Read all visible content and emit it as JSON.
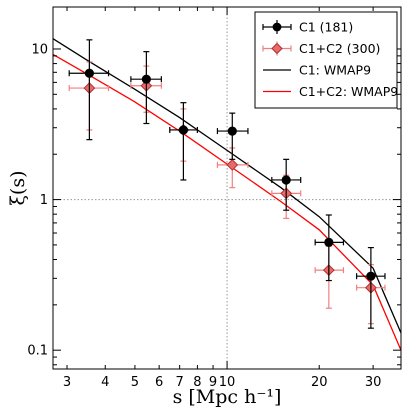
{
  "chart_data": {
    "type": "scatter",
    "title": "",
    "xlabel": "s [Mpc h⁻¹]",
    "ylabel": "ξ(s)",
    "xscale": "log",
    "yscale": "log",
    "xlim": [
      2.7,
      37
    ],
    "ylim": [
      0.075,
      19
    ],
    "grid": "dotted lines at x=10 and y=1",
    "legend_position": "top-right",
    "x_tick_labels": [
      "3",
      "4",
      "5",
      "6",
      "7",
      "8",
      "9",
      "10",
      "20",
      "30"
    ],
    "x_ticks": [
      3,
      4,
      5,
      6,
      7,
      8,
      9,
      10,
      20,
      30
    ],
    "y_tick_labels": [
      "0.1",
      "1",
      "10"
    ],
    "y_ticks": [
      0.1,
      1,
      10
    ],
    "series": [
      {
        "name": "C1 (181)",
        "kind": "points",
        "color": "#000000",
        "marker": "circle",
        "points": [
          {
            "x": 3.55,
            "y": 6.9,
            "x_lo": 3.05,
            "x_hi": 4.1,
            "y_lo": 2.5,
            "y_hi": 11.5
          },
          {
            "x": 5.45,
            "y": 6.3,
            "x_lo": 4.85,
            "x_hi": 6.1,
            "y_lo": 3.2,
            "y_hi": 9.6
          },
          {
            "x": 7.2,
            "y": 2.9,
            "x_lo": 6.5,
            "x_hi": 8.0,
            "y_lo": 1.35,
            "y_hi": 4.4
          },
          {
            "x": 10.4,
            "y": 2.85,
            "x_lo": 9.3,
            "x_hi": 11.7,
            "y_lo": 1.85,
            "y_hi": 3.75
          },
          {
            "x": 15.6,
            "y": 1.35,
            "x_lo": 14.0,
            "x_hi": 17.4,
            "y_lo": 0.85,
            "y_hi": 1.85
          },
          {
            "x": 21.5,
            "y": 0.52,
            "x_lo": 19.4,
            "x_hi": 24.0,
            "y_lo": 0.29,
            "y_hi": 0.79
          },
          {
            "x": 29.5,
            "y": 0.31,
            "x_lo": 26.5,
            "x_hi": 32.8,
            "y_lo": 0.14,
            "y_hi": 0.48
          }
        ]
      },
      {
        "name": "C1+C2 (300)",
        "kind": "points",
        "color": "#e05050",
        "marker": "diamond",
        "points": [
          {
            "x": 3.55,
            "y": 5.5,
            "x_lo": 3.05,
            "x_hi": 4.1,
            "y_lo": 2.9,
            "y_hi": 8.2
          },
          {
            "x": 5.45,
            "y": 5.7,
            "x_lo": 4.85,
            "x_hi": 6.1,
            "y_lo": 3.8,
            "y_hi": 7.7
          },
          {
            "x": 7.2,
            "y": 2.9,
            "x_lo": 6.5,
            "x_hi": 8.0,
            "y_lo": 1.8,
            "y_hi": 4.0
          },
          {
            "x": 10.4,
            "y": 1.7,
            "x_lo": 9.3,
            "x_hi": 11.7,
            "y_lo": 1.2,
            "y_hi": 2.2
          },
          {
            "x": 15.6,
            "y": 1.1,
            "x_lo": 14.0,
            "x_hi": 17.4,
            "y_lo": 0.75,
            "y_hi": 1.45
          },
          {
            "x": 21.5,
            "y": 0.34,
            "x_lo": 19.4,
            "x_hi": 24.0,
            "y_lo": 0.19,
            "y_hi": 0.49
          },
          {
            "x": 29.5,
            "y": 0.26,
            "x_lo": 26.5,
            "x_hi": 32.8,
            "y_lo": 0.15,
            "y_hi": 0.37
          }
        ]
      },
      {
        "name": "C1: WMAP9",
        "kind": "line",
        "color": "#000000",
        "x": [
          2.7,
          3.5,
          5,
          7,
          10,
          15,
          20,
          30,
          37
        ],
        "y": [
          11.7,
          8.4,
          5.4,
          3.5,
          2.12,
          1.2,
          0.77,
          0.35,
          0.13
        ]
      },
      {
        "name": "C1+C2: WMAP9",
        "kind": "line",
        "color": "#ff0000",
        "x": [
          2.7,
          3.5,
          5,
          7,
          10,
          15,
          20,
          30,
          37
        ],
        "y": [
          9.2,
          6.8,
          4.45,
          2.85,
          1.72,
          0.97,
          0.63,
          0.27,
          0.1
        ]
      }
    ]
  }
}
